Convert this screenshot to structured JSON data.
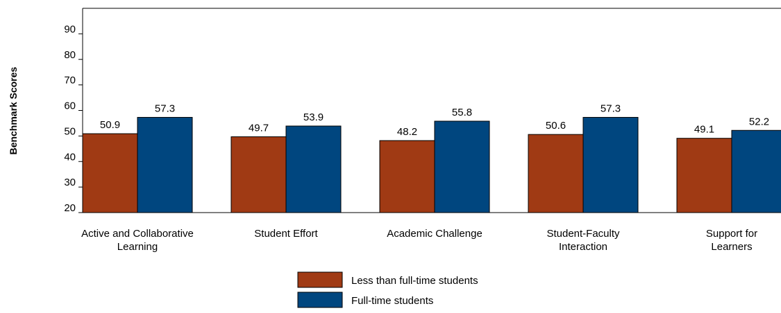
{
  "chart_data": {
    "type": "bar",
    "ylabel": "Benchmark Scores",
    "xlabel": "",
    "title": "",
    "ylim": [
      20,
      100
    ],
    "yticks": [
      20,
      30,
      40,
      50,
      60,
      70,
      80,
      90
    ],
    "categories": [
      [
        "Active and Collaborative",
        "Learning"
      ],
      [
        "Student Effort"
      ],
      [
        "Academic Challenge"
      ],
      [
        "Student-Faculty",
        "Interaction"
      ],
      [
        "Support for",
        "Learners"
      ]
    ],
    "series": [
      {
        "name": "Less than full-time students",
        "color": "#a03a14",
        "values": [
          50.9,
          49.7,
          48.2,
          50.6,
          49.1
        ]
      },
      {
        "name": "Full-time students",
        "color": "#00467f",
        "values": [
          57.3,
          53.9,
          55.8,
          57.3,
          52.2
        ]
      }
    ],
    "data_labels": [
      [
        "50.9",
        "49.7",
        "48.2",
        "50.6",
        "49.1"
      ],
      [
        "57.3",
        "53.9",
        "55.8",
        "57.3",
        "52.2"
      ]
    ],
    "grid": false,
    "legend_position": "bottom-center"
  }
}
